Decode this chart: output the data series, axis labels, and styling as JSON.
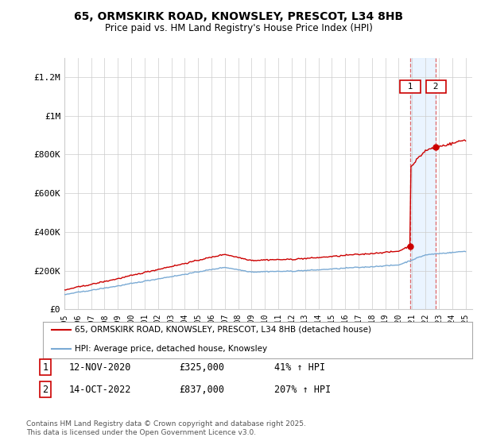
{
  "title": "65, ORMSKIRK ROAD, KNOWSLEY, PRESCOT, L34 8HB",
  "subtitle": "Price paid vs. HM Land Registry's House Price Index (HPI)",
  "ylim": [
    0,
    1300000
  ],
  "yticks": [
    0,
    200000,
    400000,
    600000,
    800000,
    1000000,
    1200000
  ],
  "ytick_labels": [
    "£0",
    "£200K",
    "£400K",
    "£600K",
    "£800K",
    "£1M",
    "£1.2M"
  ],
  "x_start_year": 1995,
  "x_end_year": 2025,
  "hpi_color": "#7aaad4",
  "price_color": "#cc0000",
  "sale1_t": 2020.875,
  "sale1_price": 325000,
  "sale2_t": 2022.792,
  "sale2_price": 837000,
  "annotation1_date": "12-NOV-2020",
  "annotation1_price": "£325,000",
  "annotation1_pct": "41% ↑ HPI",
  "annotation2_date": "14-OCT-2022",
  "annotation2_price": "£837,000",
  "annotation2_pct": "207% ↑ HPI",
  "legend_line1": "65, ORMSKIRK ROAD, KNOWSLEY, PRESCOT, L34 8HB (detached house)",
  "legend_line2": "HPI: Average price, detached house, Knowsley",
  "footer": "Contains HM Land Registry data © Crown copyright and database right 2025.\nThis data is licensed under the Open Government Licence v3.0.",
  "bg_color": "#ffffff",
  "grid_color": "#cccccc",
  "span_color": "#ddeeff",
  "vline_color": "#dd4444"
}
